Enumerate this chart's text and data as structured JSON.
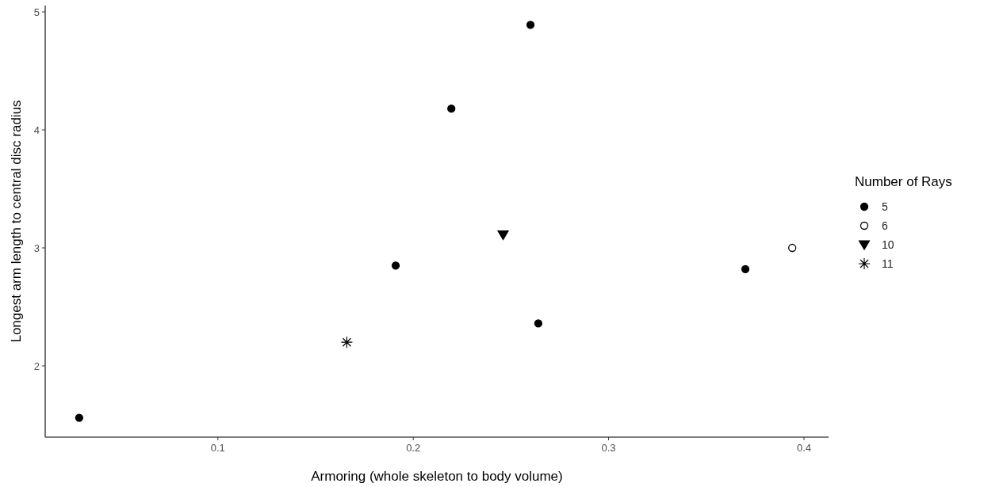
{
  "chart_data": {
    "type": "scatter",
    "xlabel": "Armoring (whole skeleton to body volume)",
    "ylabel": "Longest arm length to central disc radius",
    "legend_title": "Number of Rays",
    "legend": "right",
    "grid": false,
    "xlim": [
      0.0116,
      0.4126
    ],
    "xticks": [
      0.1,
      0.2,
      0.3,
      0.4
    ],
    "ylim": [
      1.396,
      5.054
    ],
    "yticks": [
      2,
      3,
      4,
      5
    ],
    "series": [
      {
        "name": "5",
        "color": "#000000",
        "marker": "circle",
        "x": [
          0.029,
          0.191,
          0.2195,
          0.26,
          0.264,
          0.37
        ],
        "values": [
          1.56,
          2.85,
          4.18,
          4.89,
          2.36,
          2.82
        ]
      },
      {
        "name": "6",
        "color": "#000000",
        "marker": "circle",
        "x": [
          0.394
        ],
        "values": [
          3.0
        ]
      },
      {
        "name": "10",
        "color": "#000000",
        "marker": "triangle",
        "x": [
          0.246
        ],
        "values": [
          3.11
        ]
      },
      {
        "name": "11",
        "color": "#000000",
        "marker": "cross",
        "x": [
          0.166
        ],
        "values": [
          2.2
        ]
      }
    ]
  }
}
